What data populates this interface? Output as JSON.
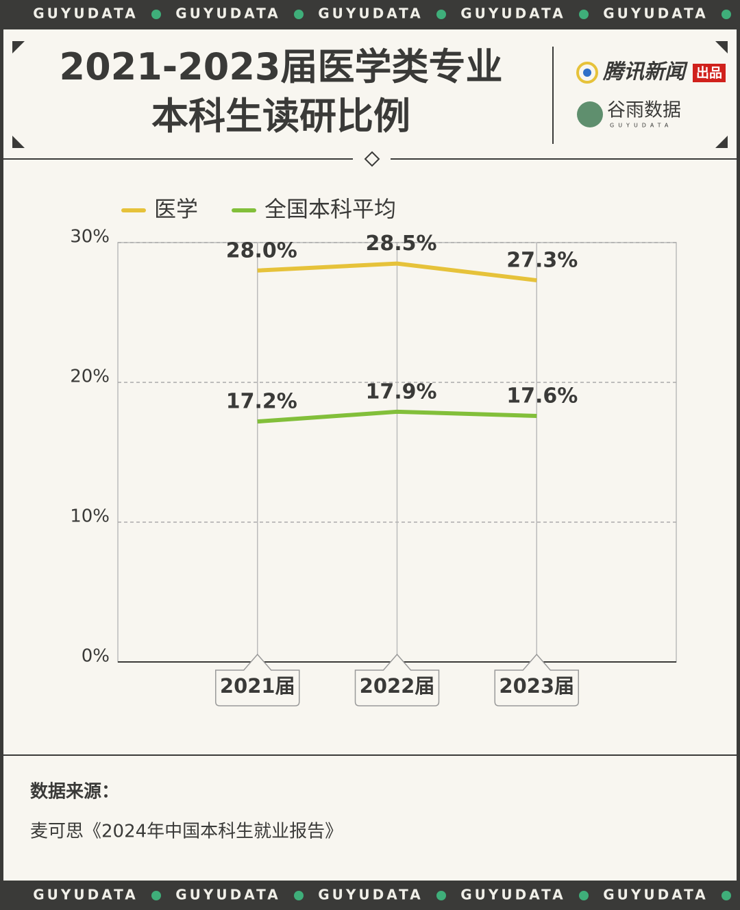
{
  "banner": "GUYUDATA",
  "branding": {
    "publisher": "腾讯新闻",
    "publisher_tag": "出品",
    "studio": "谷雨数据",
    "studio_sub": "GUYUDATA"
  },
  "chart_data": {
    "type": "line",
    "title": "2021-2023届医学类专业\n本科生读研比例",
    "categories": [
      "2021届",
      "2022届",
      "2023届"
    ],
    "series": [
      {
        "name": "医学",
        "color": "#e6c23a",
        "values": [
          28.0,
          28.5,
          27.3
        ],
        "value_labels": [
          "28.0%",
          "28.5%",
          "27.3%"
        ]
      },
      {
        "name": "全国本科平均",
        "color": "#82bf3a",
        "values": [
          17.2,
          17.9,
          17.6
        ],
        "value_labels": [
          "17.2%",
          "17.9%",
          "17.6%"
        ]
      }
    ],
    "ylim": [
      0,
      30
    ],
    "yticks": [
      {
        "value": 0,
        "label": "0%"
      },
      {
        "value": 10,
        "label": "10%"
      },
      {
        "value": 20,
        "label": "20%"
      },
      {
        "value": 30,
        "label": "30%"
      }
    ],
    "grid": true
  },
  "source": {
    "label": "数据来源：",
    "text": "麦可思《2024年中国本科生就业报告》"
  }
}
